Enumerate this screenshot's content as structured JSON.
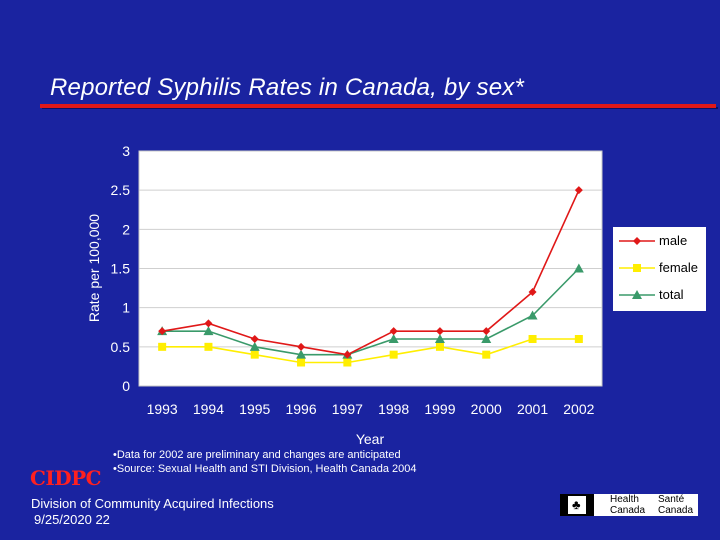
{
  "slide": {
    "title": "Reported Syphilis Rates in Canada, by sex*",
    "org_mark": "CIDPC",
    "notes": [
      "•Data for 2002 are preliminary and changes are anticipated",
      "•Source:  Sexual Health and STI Division, Health Canada 2004"
    ],
    "division": "Division of Community Acquired Infections",
    "date": "9/25/2020 22",
    "logo": {
      "line1_en": "Health",
      "line2_en": "Canada",
      "line1_fr": "Santé",
      "line2_fr": "Canada"
    }
  },
  "colors": {
    "background": "#1a23a0",
    "plot_bg": "#ffffff",
    "male": "#e01818",
    "female": "#ffee00",
    "total": "#3a9a6a",
    "rule": "#e01818"
  },
  "chart_data": {
    "type": "line",
    "title": "",
    "xlabel": "Year",
    "ylabel": "Rate per 100,000",
    "x": [
      "1993",
      "1994",
      "1995",
      "1996",
      "1997",
      "1998",
      "1999",
      "2000",
      "2001",
      "2002"
    ],
    "ylim": [
      0,
      3
    ],
    "yticks": [
      "0",
      "0.5",
      "1",
      "1.5",
      "2",
      "2.5",
      "3"
    ],
    "grid": true,
    "legend_position": "right",
    "series": [
      {
        "name": "male",
        "marker": "diamond",
        "color": "#e01818",
        "values": [
          0.7,
          0.8,
          0.6,
          0.5,
          0.4,
          0.7,
          0.7,
          0.7,
          1.2,
          2.5
        ]
      },
      {
        "name": "female",
        "marker": "square",
        "color": "#ffee00",
        "values": [
          0.5,
          0.5,
          0.4,
          0.3,
          0.3,
          0.4,
          0.5,
          0.4,
          0.6,
          0.6
        ]
      },
      {
        "name": "total",
        "marker": "triangle",
        "color": "#3a9a6a",
        "values": [
          0.7,
          0.7,
          0.5,
          0.4,
          0.4,
          0.6,
          0.6,
          0.6,
          0.9,
          1.5
        ]
      }
    ]
  }
}
